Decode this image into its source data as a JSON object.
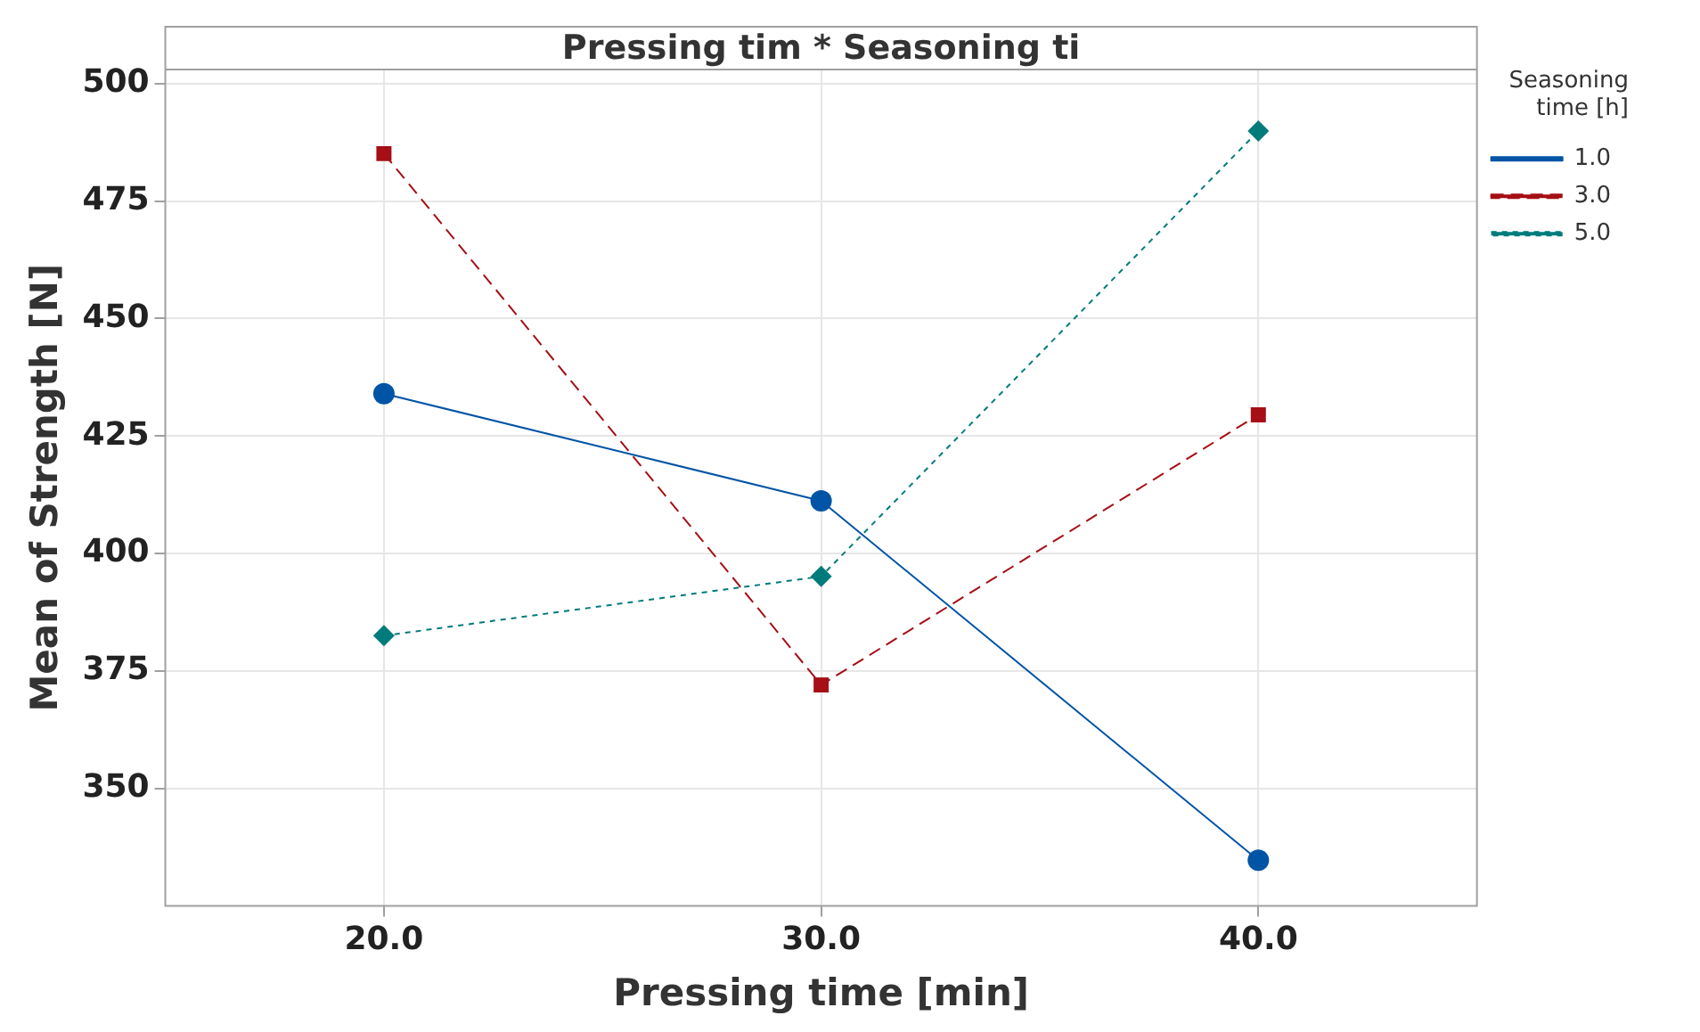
{
  "chart_data": {
    "type": "line",
    "title": "Pressing tim * Seasoning ti",
    "xlabel": "Pressing time [min]",
    "ylabel": "Mean of Strength [N]",
    "legend_title": "Seasoning time [h]",
    "x": [
      20,
      30,
      40
    ],
    "series": [
      {
        "name": "1.0",
        "color": "#0054a6",
        "values": [
          434.0,
          411.2,
          334.7
        ],
        "marker": "circle",
        "line_style": "solid"
      },
      {
        "name": "3.0",
        "color": "#a50f15",
        "values": [
          485.1,
          372.0,
          429.5
        ],
        "marker": "square",
        "line_style": "dashed"
      },
      {
        "name": "5.0",
        "color": "#007b7b",
        "values": [
          382.5,
          395.1,
          489.9
        ],
        "marker": "diamond",
        "line_style": "dotted"
      }
    ],
    "xlim": [
      15,
      45
    ],
    "xticks": [
      {
        "value": 20,
        "label": "20.0"
      },
      {
        "value": 30,
        "label": "30.0"
      },
      {
        "value": 40,
        "label": "40.0"
      }
    ],
    "ylim": [
      325,
      503
    ],
    "yticks": [
      350,
      375,
      400,
      425,
      450,
      475,
      500
    ],
    "grid": true,
    "legend": "top right"
  }
}
